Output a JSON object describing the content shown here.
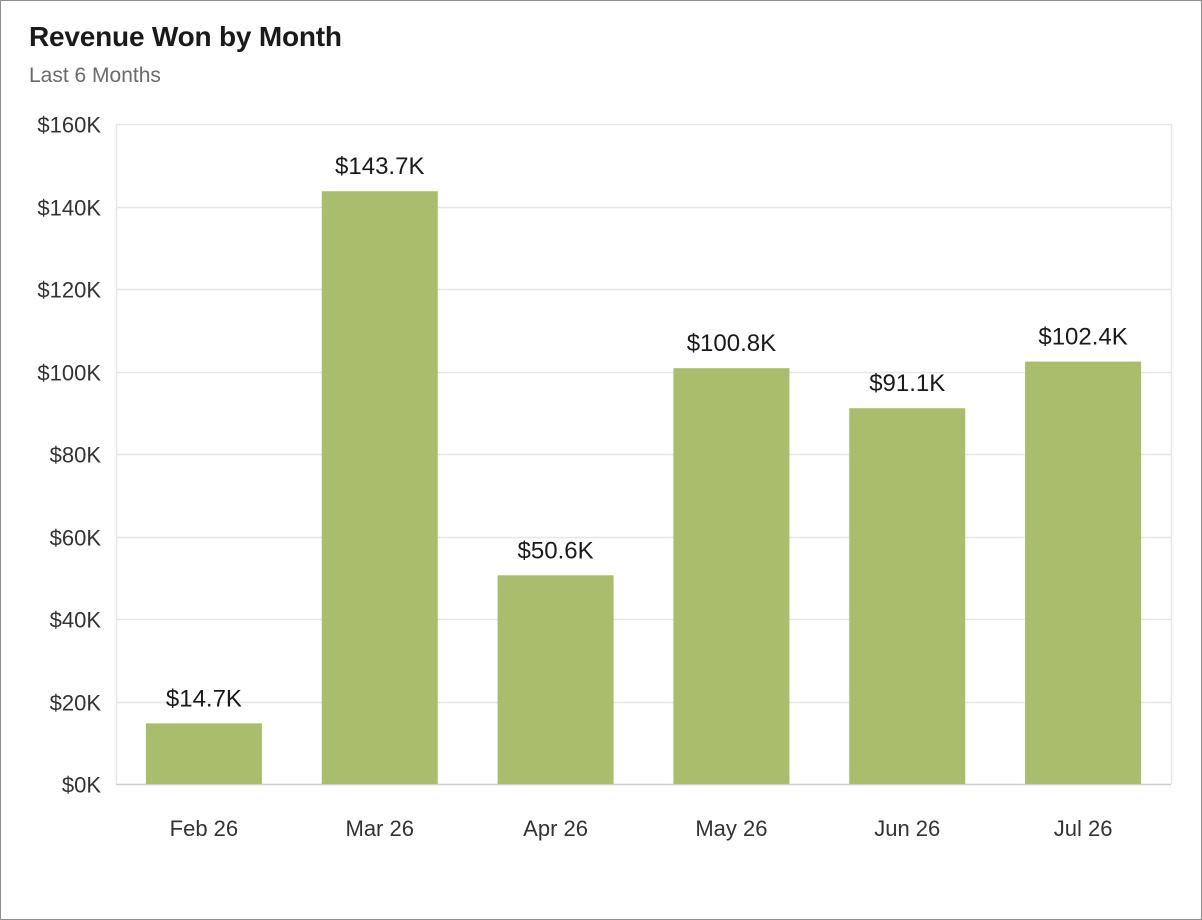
{
  "chart_data": {
    "type": "bar",
    "title": "Revenue Won by Month",
    "subtitle": "Last 6 Months",
    "xlabel": "",
    "ylabel": "",
    "categories": [
      "Feb 26",
      "Mar 26",
      "Apr 26",
      "May 26",
      "Jun 26",
      "Jul 26"
    ],
    "values": [
      14.7,
      143.7,
      50.6,
      100.8,
      91.1,
      102.4
    ],
    "value_labels": [
      "$14.7K",
      "$143.7K",
      "$50.6K",
      "$100.8K",
      "$91.1K",
      "$102.4K"
    ],
    "value_unit": "thousands of dollars",
    "ylim": [
      0,
      160
    ],
    "yticks": [
      0,
      20,
      40,
      60,
      80,
      100,
      120,
      140,
      160
    ],
    "ytick_labels": [
      "$0K",
      "$20K",
      "$40K",
      "$60K",
      "$80K",
      "$100K",
      "$120K",
      "$140K",
      "$160K"
    ],
    "grid": true,
    "legend": "none",
    "colors": {
      "bar": "#aabd6c",
      "grid": "#e6e6e6",
      "axis": "#d0d0d0"
    }
  }
}
